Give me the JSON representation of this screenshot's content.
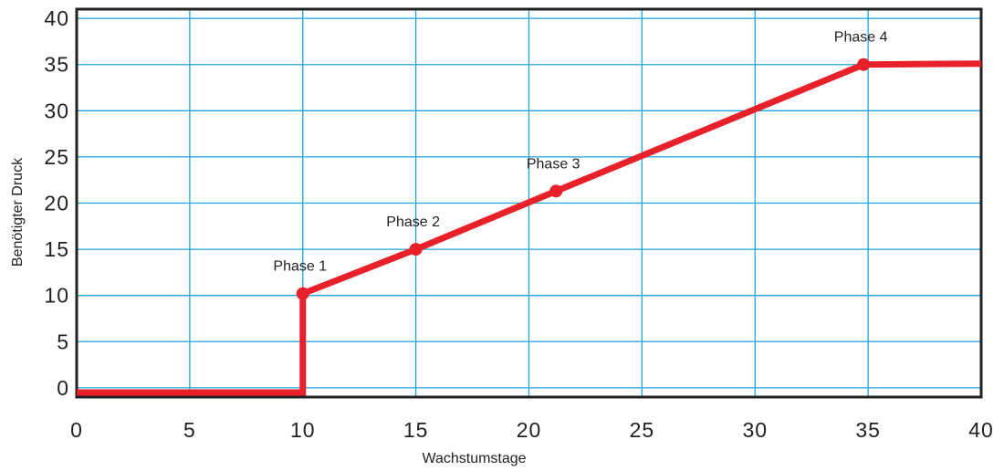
{
  "chart_data": {
    "type": "line",
    "title": "",
    "xlabel": "Wachstumstage",
    "ylabel": "Benötigter Druck",
    "xlim": [
      0,
      40
    ],
    "ylim": [
      -1,
      41
    ],
    "x_ticks": [
      0,
      5,
      10,
      15,
      20,
      25,
      30,
      35,
      40
    ],
    "y_ticks": [
      0,
      5,
      10,
      15,
      20,
      25,
      30,
      35,
      40
    ],
    "x_tick_labels": [
      "0",
      "5",
      "10",
      "15",
      "20",
      "25",
      "30",
      "35",
      "40"
    ],
    "y_tick_labels": [
      "0",
      "5",
      "10",
      "15",
      "20",
      "25",
      "30",
      "35",
      "40"
    ],
    "grid": true,
    "legend": "none",
    "colors": {
      "line": "#e8202a",
      "grid": "#1fa3dc",
      "frame": "#222222"
    },
    "series": [
      {
        "points": [
          {
            "x": 0,
            "y": -0.5
          },
          {
            "x": 10,
            "y": -0.5
          },
          {
            "x": 10,
            "y": 10.2
          },
          {
            "x": 15,
            "y": 15
          },
          {
            "x": 21.2,
            "y": 21.3
          },
          {
            "x": 34.8,
            "y": 35
          },
          {
            "x": 40,
            "y": 35.1
          }
        ]
      }
    ],
    "markers": [
      {
        "label": "Phase 1",
        "x": 10,
        "y": 10.2
      },
      {
        "label": "Phase 2",
        "x": 15,
        "y": 15
      },
      {
        "label": "Phase 3",
        "x": 21.2,
        "y": 21.3
      },
      {
        "label": "Phase 4",
        "x": 34.8,
        "y": 35
      }
    ]
  }
}
